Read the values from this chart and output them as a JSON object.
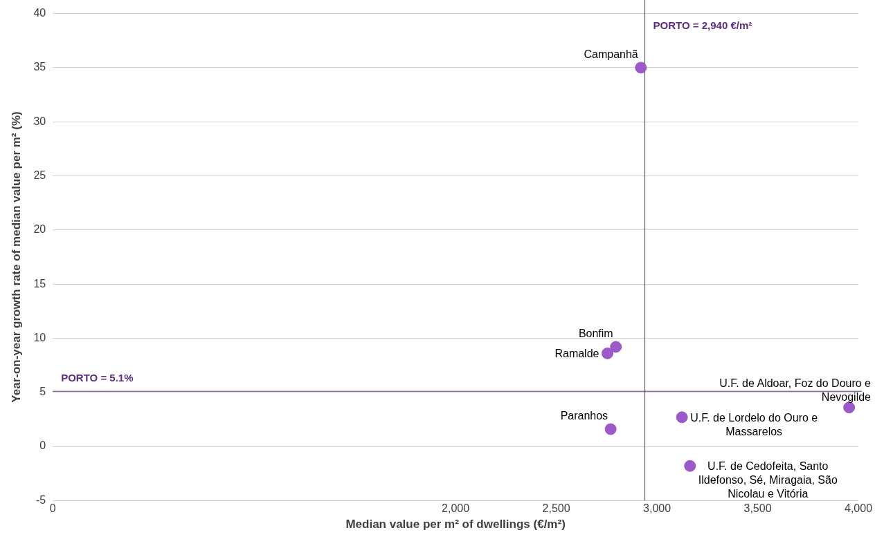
{
  "chart_data": {
    "type": "scatter",
    "xlabel": "Median value per m² of dwellings (€/m²)",
    "ylabel": "Year-on-year growth rate of median value per m² (%)",
    "series": [
      {
        "color": "#9b59c9",
        "x": [
          2920,
          2796,
          2754,
          2770,
          3124,
          3164,
          3954
        ],
        "values": [
          35.0,
          9.2,
          8.6,
          1.6,
          2.7,
          -1.8,
          3.6
        ]
      }
    ],
    "annotations": [
      {
        "text": "Campanhã",
        "x": 2920,
        "y": 35.0
      },
      {
        "text": "Bonfim",
        "x": 2796,
        "y": 9.2
      },
      {
        "text": "Ramalde",
        "x": 2754,
        "y": 8.6
      },
      {
        "text": "Paranhos",
        "x": 2770,
        "y": 1.6
      },
      {
        "text": "U.F. de Lordelo do Ouro e Massarelos",
        "x": 3124,
        "y": 2.7
      },
      {
        "text": "U.F. de Cedofeita, Santo Ildefonso, Sé, Miragaia, São Nicolau e Vitória",
        "x": 3164,
        "y": -1.8
      },
      {
        "text": "U.F. de Aldoar, Foz do Douro e Nevogilde",
        "x": 3954,
        "y": 3.6
      }
    ],
    "ref_lines": [
      {
        "axis": "x",
        "value": 2940,
        "label": "PORTO = 2,940 €/m²",
        "color": "#404040"
      },
      {
        "axis": "y",
        "value": 5.1,
        "label": "PORTO = 5.1%",
        "color": "#5b2d82"
      }
    ],
    "xlim": [
      0,
      4000
    ],
    "xticks": [
      0,
      {
        "value": 2000,
        "label": "2,000"
      },
      {
        "value": 2500,
        "label": "2,500"
      },
      {
        "value": 3000,
        "label": "3,000"
      },
      {
        "value": 3500,
        "label": "3,500"
      },
      {
        "value": 4000,
        "label": "4,000"
      }
    ],
    "ylim": [
      -5,
      40
    ],
    "yticks": [
      -5,
      0,
      5,
      10,
      15,
      20,
      25,
      30,
      35,
      40
    ],
    "grid": "y",
    "legend": false,
    "marker": "circle"
  }
}
